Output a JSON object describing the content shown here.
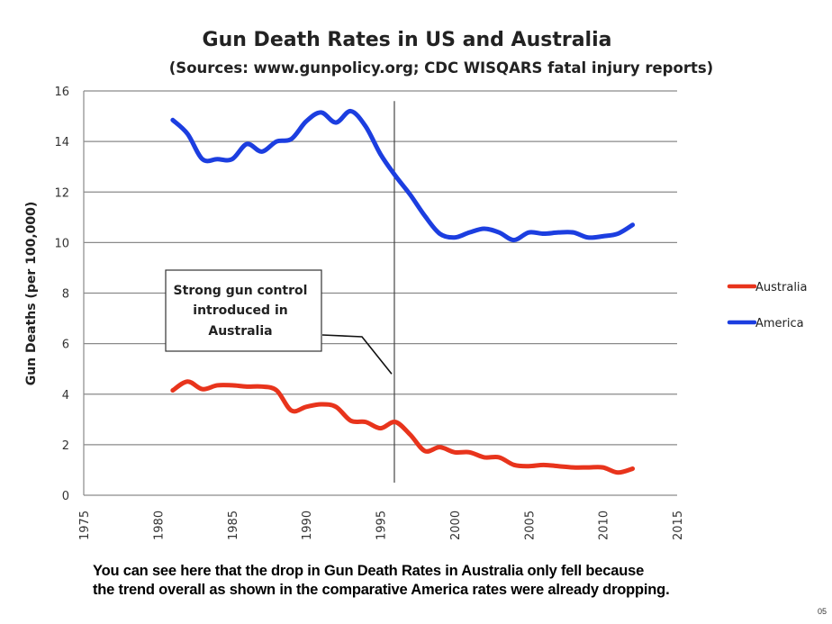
{
  "chart_data": {
    "type": "line",
    "title": "Gun Death Rates in US and Australia",
    "subtitle": "(Sources: www.gunpolicy.org; CDC WISQARS fatal injury reports)",
    "xlabel": "",
    "ylabel": "Gun Deaths (per 100,000)",
    "xlim": [
      1975,
      2015
    ],
    "ylim": [
      0,
      16
    ],
    "xticks": [
      1975,
      1980,
      1985,
      1990,
      1995,
      2000,
      2005,
      2010,
      2015
    ],
    "yticks": [
      0,
      2,
      4,
      6,
      8,
      10,
      12,
      14,
      16
    ],
    "grid": "horizontal",
    "legend_position": "right",
    "x": [
      1981,
      1982,
      1983,
      1984,
      1985,
      1986,
      1987,
      1988,
      1989,
      1990,
      1991,
      1992,
      1993,
      1994,
      1995,
      1996,
      1997,
      1998,
      1999,
      2000,
      2001,
      2002,
      2003,
      2004,
      2005,
      2006,
      2007,
      2008,
      2009,
      2010,
      2011,
      2012
    ],
    "series": [
      {
        "name": "Australia",
        "color": "#e8341c",
        "values": [
          4.15,
          4.5,
          4.2,
          4.35,
          4.35,
          4.3,
          4.3,
          4.15,
          3.35,
          3.5,
          3.6,
          3.5,
          2.95,
          2.9,
          2.65,
          2.9,
          2.4,
          1.75,
          1.9,
          1.7,
          1.7,
          1.5,
          1.5,
          1.2,
          1.15,
          1.2,
          1.15,
          1.1,
          1.1,
          1.1,
          0.9,
          1.05
        ]
      },
      {
        "name": "America",
        "color": "#1c3ee0",
        "values": [
          14.85,
          14.3,
          13.3,
          13.3,
          13.3,
          13.9,
          13.6,
          14.0,
          14.1,
          14.8,
          15.15,
          14.75,
          15.2,
          14.6,
          13.5,
          12.65,
          11.9,
          11.05,
          10.35,
          10.2,
          10.4,
          10.55,
          10.4,
          10.1,
          10.4,
          10.35,
          10.4,
          10.4,
          10.2,
          10.25,
          10.35,
          10.7
        ]
      }
    ],
    "reference_line": {
      "x": 1996,
      "from_y": 0.5,
      "to_y": 15.6
    },
    "annotation": {
      "lines": [
        "Strong gun control",
        "introduced in",
        "Australia"
      ],
      "points_to": {
        "x": 1996,
        "y": 4.8
      }
    }
  },
  "caption": {
    "line1": "You can see here that the drop in Gun Death Rates in Australia only fell because",
    "line2": "the trend overall as shown in the comparative America rates were already dropping."
  },
  "page_number": "05"
}
